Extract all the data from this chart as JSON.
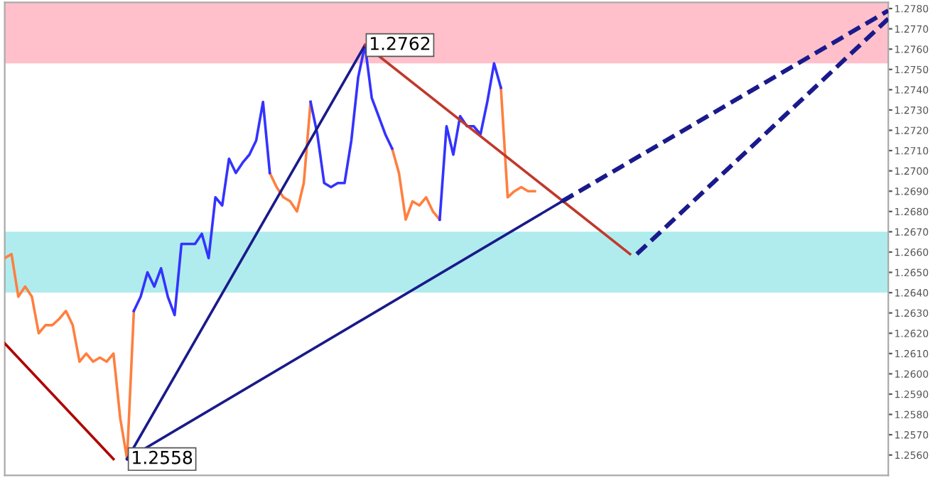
{
  "chart_data": {
    "type": "line",
    "categories": [
      null,
      null,
      null,
      null,
      null,
      null,
      null,
      null,
      null,
      null,
      null,
      null,
      null,
      null,
      null,
      null,
      null,
      null,
      null,
      null,
      null,
      null,
      null,
      null,
      null,
      null,
      null,
      null,
      null,
      null,
      null,
      null,
      null,
      null,
      null,
      null,
      null,
      null,
      null,
      null,
      null,
      null,
      null,
      null,
      null,
      null,
      null,
      null,
      null,
      null,
      null,
      null,
      null,
      null,
      null,
      null,
      null,
      null,
      null,
      null,
      null,
      null,
      null,
      null,
      null,
      null,
      null,
      null,
      null,
      null,
      null,
      null,
      null,
      null,
      null,
      null,
      null,
      null,
      null,
      null,
      null,
      null,
      null,
      null,
      null,
      null,
      null,
      null,
      null,
      null,
      null,
      null,
      null,
      null,
      null,
      null,
      null,
      null,
      null,
      null,
      null,
      null,
      null,
      null,
      null,
      null,
      null,
      null,
      null,
      null,
      null,
      null,
      null,
      null,
      null,
      null,
      null,
      null,
      null,
      null,
      null,
      null,
      null,
      null,
      null,
      null,
      null,
      null,
      null,
      null,
      null
    ],
    "ylim": [
      1.255,
      1.2783
    ],
    "yticks": [
      {
        "value": 1.256,
        "label": "1.2560"
      },
      {
        "value": 1.257,
        "label": "1.2570"
      },
      {
        "value": 1.258,
        "label": "1.2580"
      },
      {
        "value": 1.259,
        "label": "1.2590"
      },
      {
        "value": 1.26,
        "label": "1.2600"
      },
      {
        "value": 1.261,
        "label": "1.2610"
      },
      {
        "value": 1.262,
        "label": "1.2620"
      },
      {
        "value": 1.263,
        "label": "1.2630"
      },
      {
        "value": 1.264,
        "label": "1.2640"
      },
      {
        "value": 1.265,
        "label": "1.2650"
      },
      {
        "value": 1.266,
        "label": "1.2660"
      },
      {
        "value": 1.267,
        "label": "1.2670"
      },
      {
        "value": 1.268,
        "label": "1.2680"
      },
      {
        "value": 1.269,
        "label": "1.2690"
      },
      {
        "value": 1.27,
        "label": "1.2700"
      },
      {
        "value": 1.271,
        "label": "1.2710"
      },
      {
        "value": 1.272,
        "label": "1.2720"
      },
      {
        "value": 1.273,
        "label": "1.2730"
      },
      {
        "value": 1.274,
        "label": "1.2740"
      },
      {
        "value": 1.275,
        "label": "1.2750"
      },
      {
        "value": 1.276,
        "label": "1.2760"
      },
      {
        "value": 1.277,
        "label": "1.2770"
      },
      {
        "value": 1.278,
        "label": "1.2780"
      }
    ],
    "tick_labels": "y",
    "marker": "none",
    "series": [
      {
        "color": "#ff7f3f",
        "values": [
          1.2657,
          1.2659,
          1.2638,
          1.2643,
          1.2638,
          1.262,
          1.2624,
          1.2624,
          1.2627,
          1.2631,
          1.2624,
          1.2606,
          1.261,
          1.2606,
          1.2608,
          1.2606,
          1.261,
          1.2578,
          1.2558,
          1.2631,
          null,
          null,
          null,
          null,
          null,
          null,
          null,
          null,
          null,
          null,
          null,
          null,
          null,
          null,
          null,
          null,
          null,
          null,
          null,
          1.2699,
          1.2692,
          1.2687,
          1.2685,
          1.268,
          1.2694,
          1.2734,
          null,
          null,
          null,
          null,
          null,
          null,
          null,
          null,
          null,
          null,
          null,
          1.2711,
          1.2699,
          1.2676,
          1.2685,
          1.2683,
          1.2687,
          1.268,
          1.2676,
          null,
          null,
          null,
          null,
          null,
          null,
          null,
          null,
          1.2741,
          1.2687,
          1.269,
          1.2692,
          1.269,
          1.269,
          null,
          null,
          null,
          null,
          null,
          null,
          null,
          null,
          null,
          null,
          null,
          null,
          null,
          null,
          null,
          null,
          null,
          null,
          null,
          null,
          null,
          null,
          null,
          null,
          null,
          null,
          null,
          null,
          null,
          null,
          null,
          null,
          null,
          null,
          null,
          null,
          null,
          null,
          null,
          null,
          null,
          null,
          null,
          null,
          null,
          null,
          null,
          null,
          null,
          null,
          null,
          null
        ]
      },
      {
        "color": "#3333ff",
        "values": [
          null,
          null,
          null,
          null,
          null,
          null,
          null,
          null,
          null,
          null,
          null,
          null,
          null,
          null,
          null,
          null,
          null,
          null,
          null,
          1.2631,
          1.2638,
          1.265,
          1.2643,
          1.2652,
          1.2638,
          1.2629,
          1.2664,
          1.2664,
          1.2664,
          1.2669,
          1.2657,
          1.2687,
          1.2683,
          1.2706,
          1.2699,
          1.2704,
          1.2708,
          1.2715,
          1.2734,
          1.2699,
          null,
          null,
          null,
          null,
          null,
          1.2734,
          1.2718,
          1.2694,
          1.2692,
          1.2694,
          1.2694,
          1.2715,
          1.2746,
          1.2762,
          1.2736,
          1.2727,
          1.2718,
          1.2711,
          null,
          null,
          null,
          null,
          null,
          null,
          1.2676,
          1.2722,
          1.2708,
          1.2727,
          1.2722,
          1.2722,
          1.2718,
          1.2734,
          1.2753,
          1.2741,
          null,
          null,
          null,
          null,
          null,
          null,
          null,
          null,
          null,
          null,
          null,
          null,
          null,
          null,
          null,
          null,
          null,
          null,
          null,
          null,
          null,
          null,
          null,
          null,
          null,
          null,
          null,
          null,
          null,
          null,
          null,
          null,
          null,
          null,
          null,
          null,
          null,
          null,
          null,
          null,
          null,
          null,
          null,
          null,
          null,
          null,
          null,
          null,
          null,
          null,
          null,
          null,
          null,
          null,
          null,
          null,
          null
        ]
      },
      {
        "type": "line",
        "color": "#b00000",
        "values": [
          1.2615,
          null,
          null,
          null,
          null,
          null,
          null,
          null,
          null,
          null,
          null,
          null,
          null,
          null,
          null,
          null,
          1.2558,
          null,
          null,
          null,
          null,
          null,
          null,
          null,
          null,
          null,
          null,
          null,
          null,
          null,
          null,
          null,
          null,
          null,
          null,
          null,
          null,
          null,
          null,
          null,
          null,
          null,
          null,
          null,
          null,
          null,
          null,
          null,
          null,
          null,
          null,
          null,
          null,
          null,
          null,
          null,
          null,
          null,
          null,
          null,
          null,
          null,
          null,
          null,
          null,
          null,
          null,
          null,
          null,
          null,
          null,
          null,
          null,
          null,
          null,
          null,
          null,
          null,
          null,
          null,
          null,
          null,
          null,
          null,
          null,
          null,
          null,
          null,
          null,
          null,
          null,
          null,
          null,
          null,
          null,
          null,
          null,
          null,
          null,
          null,
          null,
          null,
          null,
          null,
          null,
          null,
          null,
          null,
          null,
          null,
          null,
          null,
          null,
          null,
          null,
          null,
          null,
          null,
          null,
          null,
          null,
          null,
          null,
          null,
          null,
          null,
          null,
          null,
          null,
          null,
          null
        ]
      },
      {
        "type": "line",
        "color": "#1a1a8c",
        "values": [
          null,
          null,
          null,
          null,
          null,
          null,
          null,
          null,
          null,
          null,
          null,
          null,
          null,
          null,
          null,
          null,
          null,
          null,
          1.2558,
          null,
          null,
          null,
          null,
          null,
          null,
          null,
          null,
          null,
          null,
          null,
          null,
          null,
          null,
          null,
          null,
          null,
          null,
          null,
          null,
          null,
          null,
          null,
          null,
          null,
          null,
          null,
          null,
          null,
          null,
          null,
          null,
          null,
          null,
          1.2762,
          null,
          null,
          null,
          null,
          null,
          null,
          null,
          null,
          null,
          null,
          null,
          null,
          null,
          null,
          null,
          null,
          null,
          null,
          null,
          null,
          null,
          null,
          null,
          null,
          null,
          null,
          null,
          null,
          null,
          null,
          null,
          null,
          null,
          null,
          null,
          null,
          null,
          null,
          null,
          null,
          null,
          null,
          null,
          null,
          null,
          null,
          null,
          null,
          null,
          null,
          null,
          null,
          null,
          null,
          null,
          null,
          null,
          null,
          null,
          null,
          null,
          null,
          null,
          null,
          null,
          null,
          null,
          null,
          null,
          null,
          null,
          null,
          null,
          null,
          null,
          null,
          null
        ]
      },
      {
        "type": "line",
        "color": "#c0392b",
        "values": [
          null,
          null,
          null,
          null,
          null,
          null,
          null,
          null,
          null,
          null,
          null,
          null,
          null,
          null,
          null,
          null,
          null,
          null,
          null,
          null,
          null,
          null,
          null,
          null,
          null,
          null,
          null,
          null,
          null,
          null,
          null,
          null,
          null,
          null,
          null,
          null,
          null,
          null,
          null,
          null,
          null,
          null,
          null,
          null,
          null,
          null,
          null,
          null,
          null,
          null,
          null,
          null,
          null,
          1.2762,
          null,
          null,
          null,
          null,
          null,
          null,
          null,
          null,
          null,
          null,
          null,
          null,
          null,
          null,
          null,
          null,
          null,
          null,
          null,
          null,
          null,
          null,
          null,
          null,
          null,
          null,
          null,
          null,
          null,
          null,
          null,
          null,
          null,
          null,
          null,
          null,
          null,
          null,
          1.2659,
          null,
          null,
          null,
          null,
          null,
          null,
          null,
          null,
          null,
          null,
          null,
          null,
          null,
          null,
          null,
          null,
          null,
          null,
          null,
          null,
          null,
          null,
          null,
          null,
          null,
          null,
          null,
          null,
          null,
          null,
          null,
          null,
          null,
          null,
          null,
          null,
          null,
          null
        ]
      },
      {
        "type": "line",
        "color": "#1a1a8c",
        "values": [
          null,
          null,
          null,
          null,
          null,
          null,
          null,
          null,
          null,
          null,
          null,
          null,
          null,
          null,
          null,
          null,
          null,
          null,
          1.2558,
          null,
          null,
          null,
          null,
          null,
          null,
          null,
          null,
          null,
          null,
          null,
          null,
          null,
          null,
          null,
          null,
          null,
          null,
          null,
          null,
          null,
          null,
          null,
          null,
          null,
          null,
          null,
          null,
          null,
          null,
          null,
          null,
          null,
          null,
          null,
          null,
          null,
          null,
          null,
          null,
          null,
          null,
          null,
          null,
          null,
          null,
          null,
          null,
          null,
          null,
          null,
          null,
          null,
          null,
          null,
          null,
          null,
          null,
          null,
          null,
          null,
          null,
          null,
          1.2685,
          null,
          null,
          null,
          null,
          null,
          null,
          null,
          null,
          null,
          null,
          null,
          null,
          null,
          null,
          null,
          null,
          null,
          null,
          null,
          null,
          null,
          null,
          null,
          null,
          null,
          null,
          null,
          null,
          null,
          null,
          null,
          null,
          null,
          null,
          null,
          null,
          null,
          null,
          null,
          null,
          null,
          null,
          null,
          null,
          null,
          null,
          null,
          null
        ]
      },
      {
        "type": "line",
        "color": "#1a1a8c",
        "line_style": "dashed",
        "values": [
          null,
          null,
          null,
          null,
          null,
          null,
          null,
          null,
          null,
          null,
          null,
          null,
          null,
          null,
          null,
          null,
          null,
          null,
          null,
          null,
          null,
          null,
          null,
          null,
          null,
          null,
          null,
          null,
          null,
          null,
          null,
          null,
          null,
          null,
          null,
          null,
          null,
          null,
          null,
          null,
          null,
          null,
          null,
          null,
          null,
          null,
          null,
          null,
          null,
          null,
          null,
          null,
          null,
          null,
          null,
          null,
          null,
          null,
          null,
          null,
          null,
          null,
          null,
          null,
          null,
          null,
          null,
          null,
          null,
          null,
          null,
          null,
          null,
          null,
          null,
          null,
          null,
          null,
          null,
          null,
          null,
          null,
          1.2685,
          null,
          null,
          null,
          null,
          null,
          null,
          null,
          null,
          null,
          null,
          null,
          null,
          null,
          null,
          null,
          null,
          null,
          null,
          null,
          null,
          null,
          null,
          null,
          null,
          null,
          null,
          null,
          null,
          null,
          null,
          null,
          null,
          null,
          null,
          null,
          null,
          null,
          null,
          null,
          null,
          null,
          null,
          null,
          null,
          null,
          null,
          null,
          1.2779
        ]
      },
      {
        "type": "line",
        "color": "#1a1a8c",
        "line_style": "dashed",
        "values": [
          null,
          null,
          null,
          null,
          null,
          null,
          null,
          null,
          null,
          null,
          null,
          null,
          null,
          null,
          null,
          null,
          null,
          null,
          null,
          null,
          null,
          null,
          null,
          null,
          null,
          null,
          null,
          null,
          null,
          null,
          null,
          null,
          null,
          null,
          null,
          null,
          null,
          null,
          null,
          null,
          null,
          null,
          null,
          null,
          null,
          null,
          null,
          null,
          null,
          null,
          null,
          null,
          null,
          null,
          null,
          null,
          null,
          null,
          null,
          null,
          null,
          null,
          null,
          null,
          null,
          null,
          null,
          null,
          null,
          null,
          null,
          null,
          null,
          null,
          null,
          null,
          null,
          null,
          null,
          null,
          null,
          null,
          null,
          null,
          null,
          null,
          null,
          null,
          null,
          null,
          null,
          null,
          null,
          1.2659,
          null,
          null,
          null,
          null,
          null,
          null,
          null,
          null,
          null,
          null,
          null,
          null,
          null,
          null,
          null,
          null,
          null,
          null,
          null,
          null,
          null,
          null,
          null,
          null,
          null,
          null,
          null,
          null,
          null,
          null,
          null,
          null,
          null,
          null,
          null,
          null,
          1.2775
        ]
      }
    ],
    "bands": [
      {
        "axis": "y",
        "from": 1.2753,
        "to": 1.2783,
        "color": "#ffc0cb"
      },
      {
        "axis": "y",
        "from": 1.264,
        "to": 1.267,
        "color": "#b0eced"
      }
    ],
    "annotations": [
      "1.2762",
      "1.2558"
    ]
  }
}
